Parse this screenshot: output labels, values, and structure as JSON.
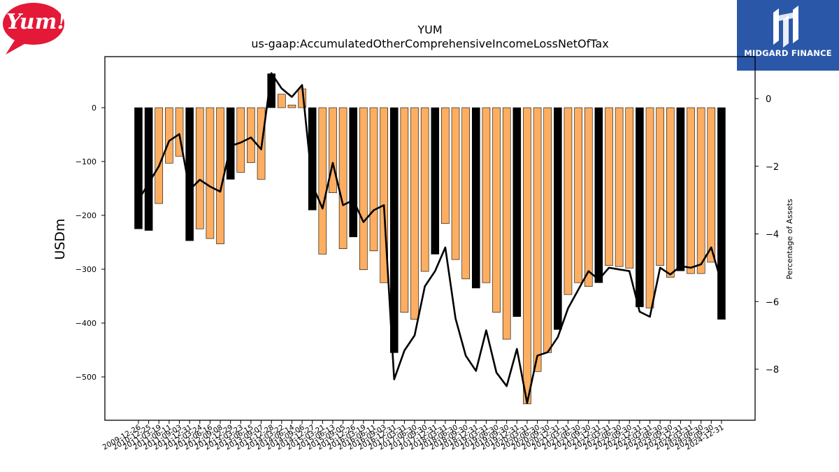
{
  "brand": {
    "company_logo_text": "Yum!",
    "watermark_text": "MIDGARD FINANCE"
  },
  "chart_data": {
    "type": "bar",
    "title": "YUM",
    "subtitle": "us-gaap:AccumulatedOtherComprehensiveIncomeLossNetOfTax",
    "ylabel": "USDm",
    "y2label": "Percentage of Assets",
    "ylim": [
      -580,
      95
    ],
    "y2lim": [
      -9.5,
      0.9
    ],
    "yticks": [
      0,
      -100,
      -200,
      -300,
      -400,
      -500
    ],
    "y2ticks": [
      0,
      -2,
      -4,
      -6,
      -8
    ],
    "colors": {
      "bar_quarter": "#fdae61",
      "bar_annual": "#000000",
      "line": "#000000"
    },
    "categories": [
      "2009-12-26",
      "2010-12-25",
      "2011-03-19",
      "2011-06-11",
      "2011-09-03",
      "2011-12-31",
      "2012-03-24",
      "2012-06-16",
      "2012-09-08",
      "2012-12-29",
      "2013-03-23",
      "2013-06-15",
      "2013-09-07",
      "2013-12-28",
      "2014-03-22",
      "2014-06-14",
      "2014-09-06",
      "2014-12-27",
      "2015-03-21",
      "2015-06-13",
      "2015-09-05",
      "2015-12-26",
      "2016-03-19",
      "2016-06-11",
      "2016-09-03",
      "2016-12-31",
      "2017-03-31",
      "2017-06-30",
      "2017-09-30",
      "2017-12-31",
      "2018-03-31",
      "2018-06-30",
      "2018-09-30",
      "2018-12-31",
      "2019-03-31",
      "2019-06-30",
      "2019-09-30",
      "2019-12-31",
      "2020-03-31",
      "2020-06-30",
      "2020-09-30",
      "2020-12-31",
      "2021-03-31",
      "2021-06-30",
      "2021-09-30",
      "2021-12-31",
      "2022-03-31",
      "2022-06-30",
      "2022-09-30",
      "2022-12-31",
      "2023-03-31",
      "2023-06-30",
      "2023-09-30",
      "2023-12-31",
      "2024-03-31",
      "2024-06-30",
      "2024-09-30",
      "2024-12-31"
    ],
    "tick_labels_shown": [
      "2009-12-26",
      "2010-12-25",
      "2011-03-19",
      "2011-06-11",
      "2011-09-03",
      "2011-12-31",
      "2012-03-24",
      "2012-06-16",
      "2012-09-08",
      "2012-12-29",
      "2013-03-23",
      "2013-06-15",
      "2013-09-07",
      "2013-12-28",
      "2014-03-22",
      "2014-06-14",
      "2014-09-06",
      "2014-12-27",
      "2015-03-21",
      "2015-06-13",
      "2015-09-05",
      "2015-12-26",
      "2016-03-19",
      "2016-06-11",
      "2016-09-03",
      "2016-12-31",
      "2017-03-31",
      "2017-06-30",
      "2017-09-30",
      "2017-12-31",
      "2018-03-31",
      "2018-06-30",
      "2018-09-30",
      "2018-12-31",
      "2019-03-31",
      "2019-06-30",
      "2019-09-30",
      "2019-12-31",
      "2020-03-31",
      "2020-06-30",
      "2020-09-30",
      "2020-12-31",
      "2021-03-31",
      "2021-06-30",
      "2021-09-30",
      "2021-12-31",
      "2022-03-31",
      "2022-06-30",
      "2022-09-30",
      "2022-12-31",
      "2023-03-31",
      "2023-06-30",
      "2023-09-30",
      "2023-12-31",
      "2024-03-31",
      "2024-06-30",
      "2024-09-30",
      "2024-12-31"
    ],
    "annual": [
      true,
      true,
      false,
      false,
      false,
      true,
      false,
      false,
      false,
      true,
      false,
      false,
      false,
      true,
      false,
      false,
      false,
      true,
      false,
      false,
      false,
      true,
      false,
      false,
      false,
      true,
      false,
      false,
      false,
      true,
      false,
      false,
      false,
      true,
      false,
      false,
      false,
      true,
      false,
      false,
      false,
      true,
      false,
      false,
      false,
      true,
      false,
      false,
      false,
      true,
      false,
      false,
      false,
      true,
      false,
      false,
      false,
      true
    ],
    "series": [
      {
        "name": "USDm",
        "kind": "bar",
        "values": [
          -225,
          -228,
          -178,
          -103,
          -90,
          -247,
          -225,
          -243,
          -253,
          -133,
          -120,
          -102,
          -133,
          63,
          25,
          5,
          35,
          -190,
          -272,
          -158,
          -262,
          -240,
          -301,
          -266,
          -325,
          -455,
          -380,
          -393,
          -304,
          -272,
          -215,
          -282,
          -318,
          -335,
          -325,
          -380,
          -430,
          -388,
          -550,
          -490,
          -455,
          -412,
          -347,
          -325,
          -332,
          -325,
          -293,
          -295,
          -298,
          -370,
          -372,
          -293,
          -315,
          -303,
          -308,
          -308,
          -287,
          -393
        ]
      },
      {
        "name": "Percentage of Assets",
        "kind": "line",
        "axis": "right",
        "values": [
          -3.0,
          -2.5,
          -2.0,
          -1.25,
          -1.05,
          -2.7,
          -2.4,
          -2.6,
          -2.75,
          -1.4,
          -1.3,
          -1.15,
          -1.5,
          0.75,
          0.3,
          0.05,
          0.4,
          -2.55,
          -3.25,
          -1.9,
          -3.15,
          -3.0,
          -3.65,
          -3.3,
          -3.15,
          -8.3,
          -7.45,
          -7.0,
          -5.55,
          -5.1,
          -4.4,
          -6.5,
          -7.6,
          -8.05,
          -6.85,
          -8.1,
          -8.5,
          -7.4,
          -9.0,
          -7.6,
          -7.5,
          -7.05,
          -6.2,
          -5.65,
          -5.1,
          -5.35,
          -5.0,
          -5.05,
          -5.1,
          -6.3,
          -6.45,
          -5.0,
          -5.2,
          -4.95,
          -5.0,
          -4.9,
          -4.4,
          -5.45
        ]
      }
    ]
  }
}
